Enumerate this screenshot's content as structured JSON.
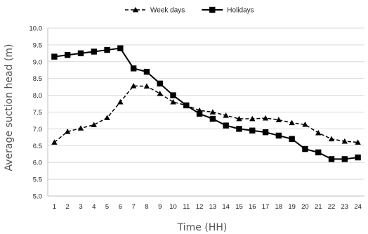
{
  "chart_data": {
    "type": "line",
    "xlabel": "Time (HH)",
    "ylabel": "Average suction head (m)",
    "x": [
      1,
      2,
      3,
      4,
      5,
      6,
      7,
      8,
      9,
      10,
      11,
      12,
      13,
      14,
      15,
      16,
      17,
      18,
      19,
      20,
      21,
      22,
      23,
      24
    ],
    "ylim": [
      5.0,
      10.0
    ],
    "yticks": [
      "5.0",
      "5.5",
      "6.0",
      "6.5",
      "7.0",
      "7.5",
      "8.0",
      "8.5",
      "9.0",
      "9.5",
      "10.0"
    ],
    "grid": true,
    "legend_position": "top-center",
    "series": [
      {
        "name": "Week days",
        "line_style": "dashed",
        "marker": "triangle",
        "color": "#000000",
        "values": [
          6.6,
          6.92,
          7.02,
          7.12,
          7.33,
          7.8,
          8.28,
          8.27,
          8.05,
          7.8,
          7.7,
          7.55,
          7.5,
          7.4,
          7.3,
          7.3,
          7.32,
          7.27,
          7.18,
          7.13,
          6.88,
          6.7,
          6.63,
          6.6
        ]
      },
      {
        "name": "Holidays",
        "line_style": "solid",
        "marker": "square",
        "color": "#000000",
        "values": [
          9.15,
          9.2,
          9.25,
          9.3,
          9.35,
          9.4,
          8.8,
          8.7,
          8.35,
          8.0,
          7.7,
          7.45,
          7.3,
          7.1,
          7.0,
          6.95,
          6.9,
          6.8,
          6.7,
          6.4,
          6.3,
          6.1,
          6.1,
          6.15
        ]
      }
    ]
  }
}
